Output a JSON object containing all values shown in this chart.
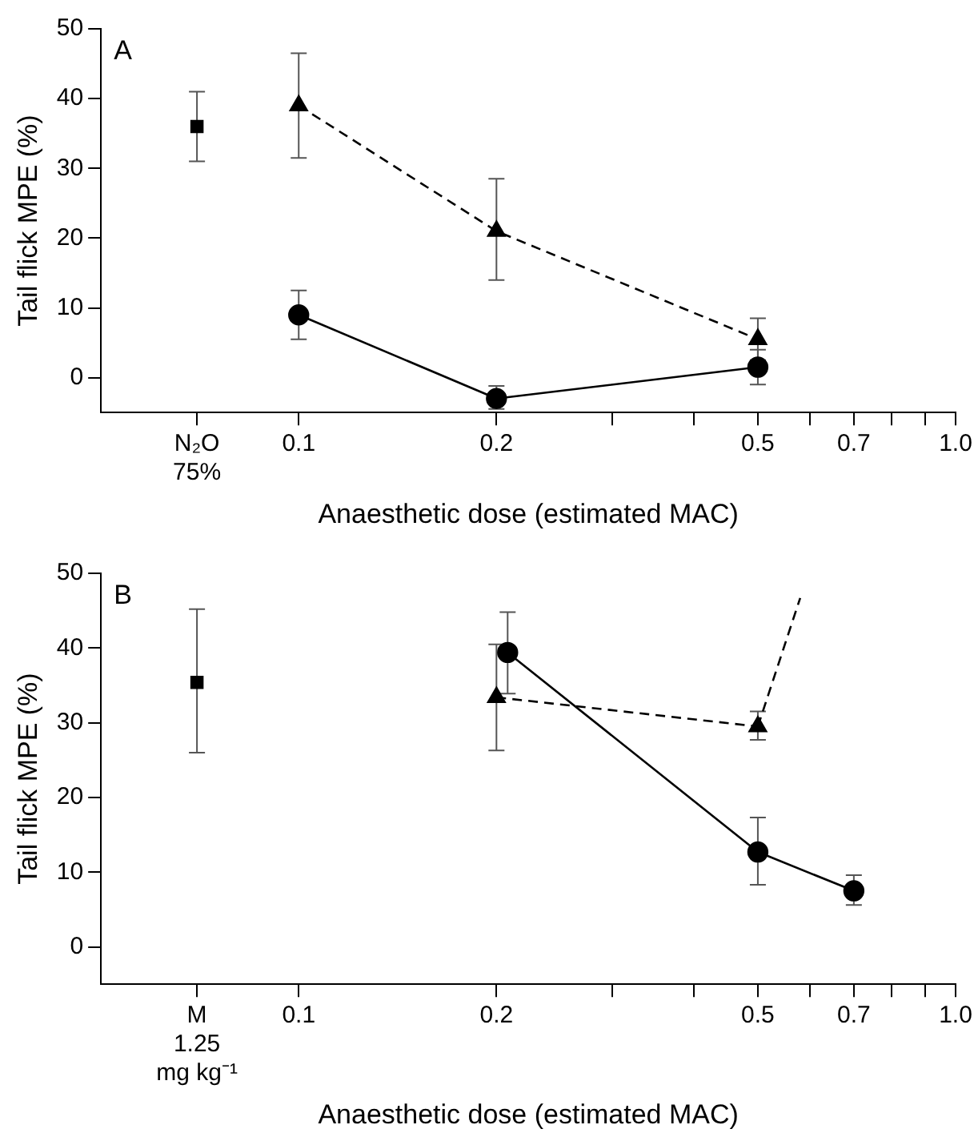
{
  "chart_data": [
    {
      "type": "line",
      "xlabel": "Anaesthetic dose (estimated MAC)",
      "ylabel": "Tail flick MPE (%)",
      "annotations": [
        "A"
      ],
      "log": "x",
      "xlim": [
        0.05,
        1.0
      ],
      "xticks": [
        {
          "value": 0.07,
          "label": "N₂O\n75%"
        },
        0.1,
        0.2,
        {
          "value": 0.3,
          "label": null
        },
        {
          "value": 0.4,
          "label": null
        },
        0.5,
        {
          "value": 0.6,
          "label": null
        },
        0.7,
        {
          "value": 0.8,
          "label": null
        },
        {
          "value": 0.9,
          "label": null
        },
        {
          "value": 1.0,
          "label": "1.0"
        }
      ],
      "ylim": [
        -5,
        50
      ],
      "yticks": [
        0,
        10,
        20,
        30,
        40,
        50
      ],
      "grid": false,
      "legend": false,
      "series": [
        {
          "type": "scatter",
          "marker": "square",
          "color": "#000000",
          "x": [
            0.07
          ],
          "values": [
            36
          ],
          "errors": [
            [
              31,
              41
            ]
          ]
        },
        {
          "marker": "triangle",
          "line_style": "dashed",
          "color": "#000000",
          "x": [
            0.1,
            0.2,
            0.5
          ],
          "values": [
            39,
            21,
            5.5
          ],
          "errors": [
            [
              31.5,
              46.5
            ],
            [
              14,
              28.5
            ],
            [
              2.5,
              8.5
            ]
          ]
        },
        {
          "marker": "circle",
          "line_style": "solid",
          "color": "#000000",
          "x": [
            0.1,
            0.2,
            0.5
          ],
          "values": [
            9,
            -3,
            1.5
          ],
          "errors": [
            [
              5.5,
              12.5
            ],
            [
              -4.5,
              -1.2
            ],
            [
              -1,
              4
            ]
          ]
        }
      ]
    },
    {
      "type": "line",
      "xlabel": "Anaesthetic dose (estimated MAC)",
      "ylabel": "Tail flick MPE (%)",
      "annotations": [
        "B"
      ],
      "log": "x",
      "xlim": [
        0.05,
        1.0
      ],
      "xticks": [
        {
          "value": 0.07,
          "label": "M\n1.25\nmg kg⁻¹"
        },
        0.1,
        0.2,
        {
          "value": 0.3,
          "label": null
        },
        {
          "value": 0.4,
          "label": null
        },
        0.5,
        {
          "value": 0.6,
          "label": null
        },
        0.7,
        {
          "value": 0.8,
          "label": null
        },
        {
          "value": 0.9,
          "label": null
        },
        {
          "value": 1.0,
          "label": "1.0"
        }
      ],
      "ylim": [
        -5,
        50
      ],
      "yticks": [
        0,
        10,
        20,
        30,
        40,
        50
      ],
      "grid": false,
      "legend": false,
      "series": [
        {
          "type": "scatter",
          "marker": "square",
          "color": "#000000",
          "x": [
            0.07
          ],
          "values": [
            35.4
          ],
          "errors": [
            [
              26,
              45.2
            ]
          ]
        },
        {
          "marker": "triangle",
          "line_style": "dashed",
          "color": "#000000",
          "x": [
            0.2,
            0.5
          ],
          "values": [
            33.4,
            29.5
          ],
          "errors": [
            [
              26.3,
              40.5
            ],
            [
              27.7,
              31.5
            ]
          ]
        },
        {
          "marker": "none",
          "line_style": "dashed",
          "color": "#000000",
          "x": [
            0.5,
            0.58
          ],
          "values": [
            29.5,
            46.7
          ]
        },
        {
          "marker": "circle",
          "line_style": "solid",
          "color": "#000000",
          "x": [
            0.208,
            0.5,
            0.7
          ],
          "values": [
            39.4,
            12.7,
            7.5
          ],
          "errors": [
            [
              33.9,
              44.8
            ],
            [
              8.3,
              17.3
            ],
            [
              5.6,
              9.6
            ]
          ]
        }
      ]
    }
  ]
}
